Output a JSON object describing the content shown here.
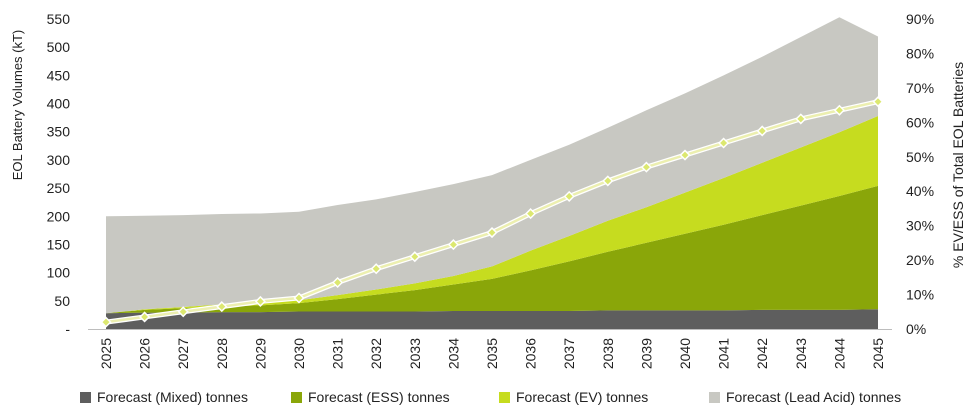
{
  "chart_data": {
    "type": "area",
    "stacked": true,
    "categories": [
      "2025",
      "2026",
      "2027",
      "2028",
      "2029",
      "2030",
      "2031",
      "2032",
      "2033",
      "2034",
      "2035",
      "2036",
      "2037",
      "2038",
      "2039",
      "2040",
      "2041",
      "2042",
      "2043",
      "2044",
      "2045"
    ],
    "series": [
      {
        "name": "Forecast (Mixed) tonnes",
        "color": "#5e5e5e",
        "axis": "left",
        "values": [
          28,
          29,
          29,
          30,
          30,
          31,
          31,
          31,
          31,
          32,
          32,
          32,
          32,
          33,
          33,
          33,
          33,
          34,
          34,
          34,
          35
        ]
      },
      {
        "name": "Forecast (ESS) tonnes",
        "color": "#8aa609",
        "axis": "left",
        "values": [
          0,
          5,
          8,
          10,
          12,
          15,
          22,
          30,
          38,
          47,
          57,
          72,
          88,
          104,
          120,
          136,
          152,
          168,
          185,
          202,
          219
        ]
      },
      {
        "name": "Forecast (EV) tonnes",
        "color": "#c6dc1f",
        "axis": "left",
        "values": [
          0,
          1,
          2,
          4,
          5,
          5,
          7,
          9,
          12,
          15,
          22,
          35,
          45,
          55,
          63,
          73,
          83,
          93,
          103,
          113,
          124
        ]
      },
      {
        "name": "Forecast (Lead Acid) tonnes",
        "color": "#c8c8c2",
        "axis": "left",
        "values": [
          172,
          166,
          163,
          160,
          158,
          157,
          160,
          160,
          162,
          163,
          162,
          161,
          162,
          165,
          172,
          176,
          182,
          188,
          196,
          204,
          141
        ]
      }
    ],
    "line_series": {
      "name": "% EV/ESS of Total EOL Batteries",
      "axis": "right",
      "color": "#ecefb0",
      "marker_color": "#dce870",
      "values": [
        2,
        3.5,
        5,
        6.5,
        8,
        9,
        13.5,
        17.5,
        21,
        24.5,
        28,
        33.5,
        38.5,
        43,
        47,
        50.5,
        54,
        57.5,
        61,
        63.5,
        66
      ]
    },
    "ylabel": "EOL Battery Volumes (kT)",
    "y2label": "% EV/ESS of Total EOL Batteries",
    "ylim": [
      0,
      550
    ],
    "y2lim": [
      0,
      90
    ],
    "yticks": [
      "-",
      "50",
      "100",
      "150",
      "200",
      "250",
      "300",
      "350",
      "400",
      "450",
      "500",
      "550"
    ],
    "y2ticks": [
      "0%",
      "10%",
      "20%",
      "30%",
      "40%",
      "50%",
      "60%",
      "70%",
      "80%",
      "90%"
    ],
    "legend_position": "bottom",
    "grid": false
  }
}
